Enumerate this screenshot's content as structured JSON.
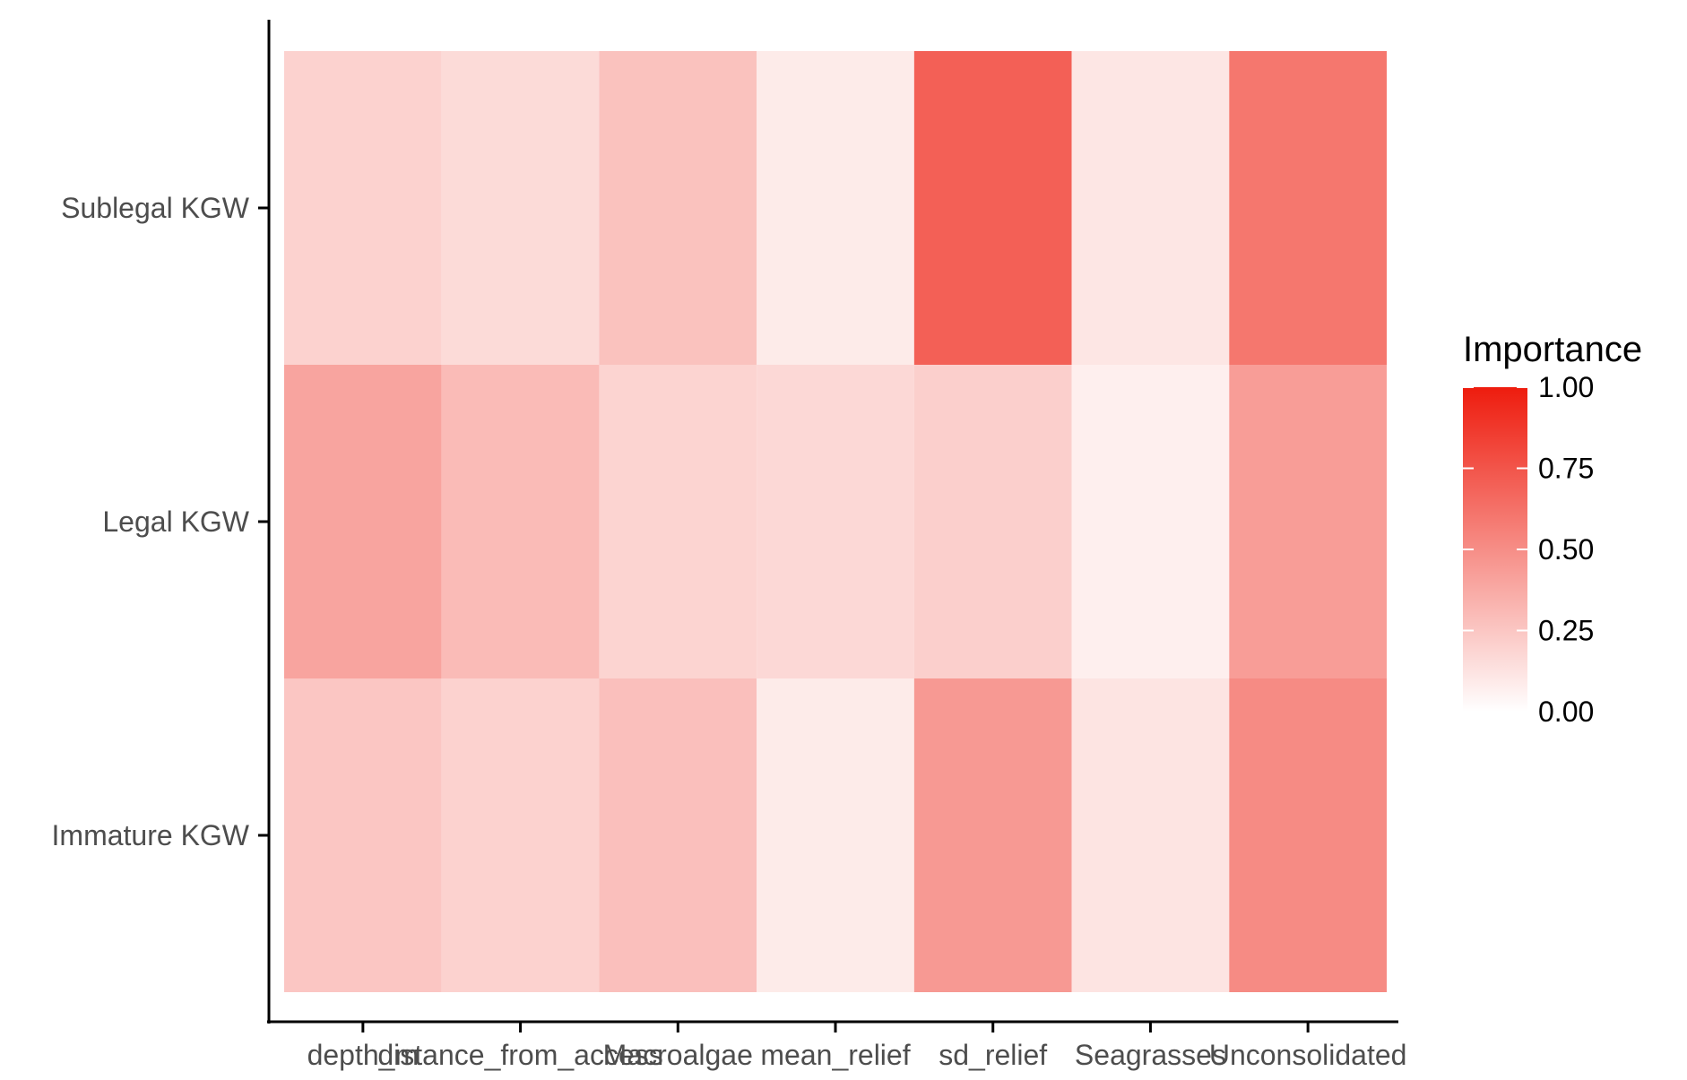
{
  "chart_data": {
    "type": "heatmap",
    "title": "",
    "xlabel": "",
    "ylabel": "",
    "x_categories": [
      "depth_m",
      "distance_from_access",
      "Macroalgae",
      "mean_relief",
      "sd_relief",
      "Seagrasses",
      "Unconsolidated"
    ],
    "y_categories": [
      "Sublegal KGW",
      "Legal KGW",
      "Immature KGW"
    ],
    "values": [
      [
        0.2,
        0.16,
        0.27,
        0.09,
        0.7,
        0.11,
        0.6
      ],
      [
        0.4,
        0.3,
        0.19,
        0.17,
        0.21,
        0.07,
        0.43
      ],
      [
        0.25,
        0.2,
        0.28,
        0.09,
        0.45,
        0.12,
        0.51
      ]
    ],
    "legend": {
      "title": "Importance",
      "ticks": [
        "1.00",
        "0.75",
        "0.50",
        "0.25",
        "0.00"
      ],
      "tick_values": [
        1.0,
        0.75,
        0.5,
        0.25,
        0.0
      ],
      "range": [
        0,
        1
      ],
      "low_color": "#ffffff",
      "high_color": "#ee1c0e",
      "position": "right"
    }
  }
}
